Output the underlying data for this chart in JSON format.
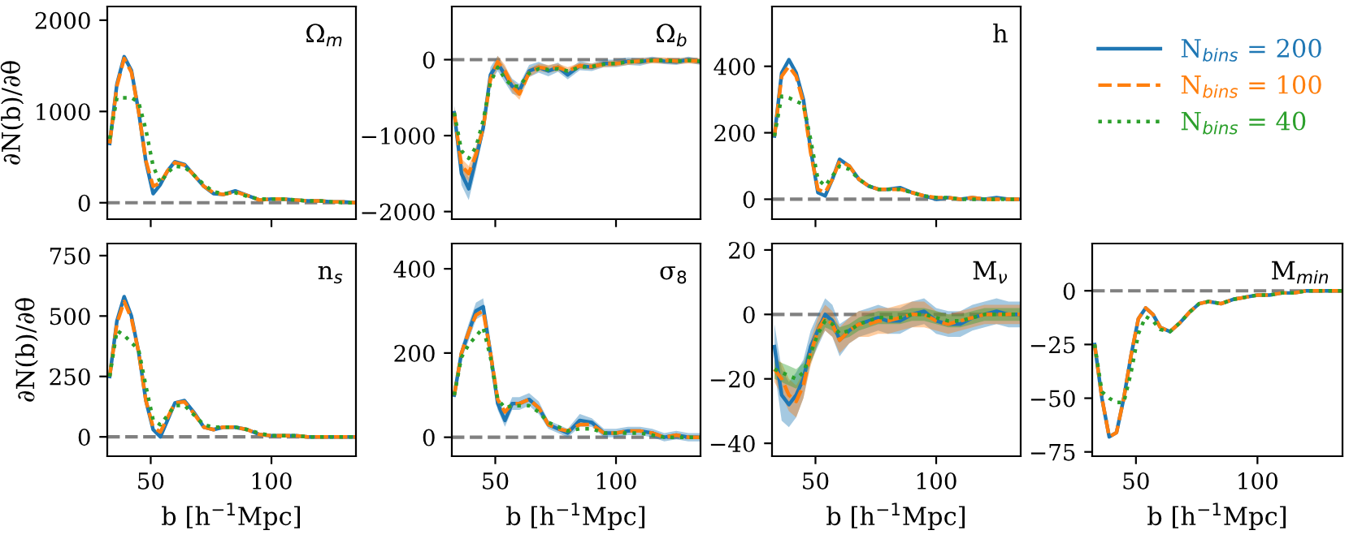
{
  "chart_data": [
    {
      "type": "line",
      "title": "Ω$_{m}$",
      "ylabel": "∂N(b)/∂θ",
      "x": [
        33,
        36,
        39,
        42,
        45,
        48,
        51,
        54,
        57,
        60,
        64,
        68,
        72,
        76,
        80,
        85,
        90,
        95,
        100,
        105,
        110,
        115,
        120,
        125,
        130,
        135
      ],
      "xlim": [
        32,
        135
      ],
      "xticks": [
        50,
        100
      ],
      "ylim": [
        -180,
        2150
      ],
      "yticks": [
        0,
        1000,
        2000
      ],
      "tick_labels": "y",
      "legend": "right",
      "ref_lines": [
        {
          "axis": "y",
          "value": 0,
          "color": "#808080",
          "line_style": "dashed"
        }
      ],
      "series": [
        {
          "name": "N$_{bins}$ = 200",
          "color": "#1f77b4",
          "line_style": "solid",
          "values": [
            650,
            1300,
            1600,
            1450,
            1000,
            450,
            100,
            200,
            350,
            450,
            420,
            300,
            180,
            100,
            90,
            130,
            80,
            30,
            40,
            40,
            30,
            20,
            20,
            10,
            10,
            0
          ]
        },
        {
          "name": "N$_{bins}$ = 100",
          "color": "#ff7f0e",
          "line_style": "dashed",
          "values": [
            650,
            1280,
            1580,
            1430,
            1000,
            460,
            180,
            220,
            350,
            440,
            410,
            300,
            180,
            110,
            90,
            120,
            80,
            30,
            40,
            40,
            30,
            20,
            20,
            10,
            10,
            0
          ]
        },
        {
          "name": "N$_{bins}$ = 40",
          "color": "#2ca02c",
          "line_style": "dotted",
          "values": [
            700,
            1150,
            1150,
            1150,
            1100,
            800,
            400,
            220,
            330,
            400,
            390,
            300,
            200,
            120,
            100,
            110,
            70,
            40,
            40,
            40,
            30,
            20,
            20,
            10,
            0,
            0
          ]
        }
      ]
    },
    {
      "type": "line",
      "title": "Ω$_{b}$",
      "x": [
        33,
        36,
        39,
        42,
        45,
        48,
        51,
        54,
        57,
        60,
        64,
        68,
        72,
        76,
        80,
        85,
        90,
        95,
        100,
        105,
        110,
        115,
        120,
        125,
        130,
        135
      ],
      "xlim": [
        32,
        135
      ],
      "xticks": [
        50,
        100
      ],
      "ylim": [
        -2100,
        700
      ],
      "yticks": [
        -2000,
        -1000,
        0
      ],
      "tick_labels": "y",
      "ref_lines": [
        {
          "axis": "y",
          "value": 0,
          "color": "#808080",
          "line_style": "dashed"
        }
      ],
      "series": [
        {
          "color": "#1f77b4",
          "line_style": "solid",
          "values": [
            -700,
            -1500,
            -1700,
            -1300,
            -900,
            -200,
            -50,
            -200,
            -350,
            -400,
            -150,
            -100,
            -150,
            -100,
            -200,
            -80,
            -100,
            -50,
            -50,
            -20,
            -30,
            0,
            -20,
            -30,
            0,
            -30
          ],
          "lower": [
            -800,
            -1650,
            -1850,
            -1450,
            -1000,
            -300,
            -150,
            -300,
            -450,
            -480,
            -230,
            -170,
            -220,
            -160,
            -260,
            -140,
            -150,
            -100,
            -100,
            -70,
            -80,
            -40,
            -60,
            -70,
            -40,
            -70
          ],
          "upper": [
            -600,
            -1350,
            -1550,
            -1150,
            -800,
            -100,
            50,
            -100,
            -250,
            -320,
            -70,
            -30,
            -80,
            -40,
            -140,
            -20,
            -50,
            0,
            0,
            30,
            20,
            40,
            20,
            10,
            40,
            10
          ]
        },
        {
          "color": "#ff7f0e",
          "line_style": "dashed",
          "values": [
            -700,
            -1400,
            -1500,
            -1250,
            -900,
            -250,
            -30,
            -150,
            -350,
            -450,
            -170,
            -100,
            -120,
            -100,
            -150,
            -80,
            -90,
            -60,
            -50,
            -30,
            -20,
            -10,
            -10,
            -20,
            -10,
            -20
          ],
          "lower": [
            -780,
            -1500,
            -1600,
            -1350,
            -980,
            -330,
            -110,
            -230,
            -430,
            -530,
            -230,
            -150,
            -170,
            -150,
            -200,
            -120,
            -130,
            -100,
            -90,
            -70,
            -60,
            -50,
            -50,
            -60,
            -50,
            -60
          ],
          "upper": [
            -620,
            -1300,
            -1400,
            -1150,
            -820,
            -170,
            50,
            -70,
            -270,
            -370,
            -110,
            -50,
            -70,
            -50,
            -100,
            -40,
            -50,
            -20,
            -10,
            10,
            20,
            30,
            30,
            20,
            30,
            20
          ]
        },
        {
          "color": "#2ca02c",
          "line_style": "dotted",
          "values": [
            -700,
            -1200,
            -1300,
            -1150,
            -800,
            -300,
            -100,
            -250,
            -350,
            -350,
            -180,
            -120,
            -130,
            -120,
            -150,
            -100,
            -90,
            -60,
            -50,
            -30,
            -20,
            -10,
            -10,
            -20,
            -10,
            -20
          ]
        }
      ]
    },
    {
      "type": "line",
      "title": "h",
      "x": [
        33,
        36,
        39,
        42,
        45,
        48,
        51,
        54,
        57,
        60,
        64,
        68,
        72,
        76,
        80,
        85,
        90,
        95,
        100,
        105,
        110,
        115,
        120,
        125,
        130,
        135
      ],
      "xlim": [
        32,
        135
      ],
      "xticks": [
        50,
        100
      ],
      "ylim": [
        -60,
        580
      ],
      "yticks": [
        0,
        200,
        400
      ],
      "tick_labels": "y",
      "ref_lines": [
        {
          "axis": "y",
          "value": 0,
          "color": "#808080",
          "line_style": "dashed"
        }
      ],
      "series": [
        {
          "color": "#1f77b4",
          "line_style": "solid",
          "values": [
            190,
            380,
            420,
            380,
            300,
            150,
            20,
            10,
            60,
            120,
            100,
            60,
            40,
            30,
            30,
            35,
            20,
            10,
            0,
            5,
            0,
            5,
            0,
            5,
            0,
            0
          ]
        },
        {
          "color": "#ff7f0e",
          "line_style": "dashed",
          "values": [
            190,
            370,
            400,
            370,
            290,
            140,
            30,
            20,
            60,
            115,
            100,
            60,
            40,
            30,
            30,
            30,
            20,
            10,
            5,
            5,
            0,
            5,
            0,
            0,
            0,
            0
          ]
        },
        {
          "color": "#2ca02c",
          "line_style": "dotted",
          "values": [
            190,
            310,
            305,
            295,
            285,
            180,
            60,
            40,
            70,
            100,
            90,
            60,
            40,
            30,
            30,
            30,
            20,
            10,
            5,
            5,
            0,
            0,
            0,
            0,
            0,
            0
          ]
        }
      ]
    },
    {
      "type": "line",
      "title": "n$_{s}$",
      "ylabel": "∂N(b)/∂θ",
      "xlabel": "b [h$^{−1}$Mpc]",
      "x": [
        33,
        36,
        39,
        42,
        45,
        48,
        51,
        54,
        57,
        60,
        64,
        68,
        72,
        76,
        80,
        85,
        90,
        95,
        100,
        105,
        110,
        115,
        120,
        125,
        130,
        135
      ],
      "xlim": [
        32,
        135
      ],
      "xticks": [
        50,
        100
      ],
      "ylim": [
        -80,
        800
      ],
      "yticks": [
        0,
        250,
        500,
        750
      ],
      "ref_lines": [
        {
          "axis": "y",
          "value": 0,
          "color": "#808080",
          "line_style": "dashed"
        }
      ],
      "series": [
        {
          "color": "#1f77b4",
          "line_style": "solid",
          "values": [
            250,
            480,
            580,
            500,
            350,
            150,
            30,
            0,
            70,
            140,
            150,
            100,
            40,
            30,
            40,
            40,
            30,
            10,
            5,
            5,
            5,
            0,
            0,
            0,
            0,
            0
          ]
        },
        {
          "color": "#ff7f0e",
          "line_style": "dashed",
          "values": [
            250,
            470,
            560,
            490,
            350,
            150,
            40,
            20,
            80,
            140,
            145,
            95,
            40,
            30,
            40,
            40,
            30,
            10,
            5,
            5,
            5,
            0,
            0,
            0,
            0,
            0
          ]
        },
        {
          "color": "#2ca02c",
          "line_style": "dotted",
          "values": [
            250,
            440,
            420,
            390,
            360,
            210,
            70,
            50,
            90,
            130,
            130,
            90,
            50,
            40,
            40,
            40,
            30,
            15,
            5,
            5,
            5,
            0,
            0,
            0,
            0,
            0
          ]
        }
      ]
    },
    {
      "type": "line",
      "title": "σ$_{8}$",
      "xlabel": "b [h$^{−1}$Mpc]",
      "x": [
        33,
        36,
        39,
        42,
        45,
        48,
        51,
        54,
        57,
        60,
        64,
        68,
        72,
        76,
        80,
        85,
        90,
        95,
        100,
        105,
        110,
        115,
        120,
        125,
        130,
        135
      ],
      "xlim": [
        32,
        135
      ],
      "xticks": [
        50,
        100
      ],
      "ylim": [
        -45,
        460
      ],
      "yticks": [
        0,
        200,
        400
      ],
      "ref_lines": [
        {
          "axis": "y",
          "value": 0,
          "color": "#808080",
          "line_style": "dashed"
        }
      ],
      "series": [
        {
          "color": "#1f77b4",
          "line_style": "solid",
          "values": [
            100,
            200,
            250,
            300,
            310,
            200,
            80,
            40,
            80,
            80,
            90,
            70,
            30,
            20,
            10,
            40,
            35,
            10,
            10,
            15,
            15,
            10,
            0,
            5,
            0,
            0
          ],
          "lower": [
            90,
            185,
            230,
            280,
            290,
            185,
            65,
            25,
            65,
            65,
            75,
            55,
            20,
            10,
            0,
            25,
            25,
            0,
            0,
            5,
            5,
            0,
            -10,
            -5,
            -10,
            -10
          ],
          "upper": [
            110,
            215,
            270,
            320,
            330,
            215,
            95,
            55,
            95,
            95,
            105,
            85,
            40,
            30,
            20,
            55,
            45,
            20,
            20,
            25,
            25,
            20,
            10,
            15,
            10,
            10
          ]
        },
        {
          "color": "#ff7f0e",
          "line_style": "dashed",
          "values": [
            100,
            200,
            250,
            290,
            300,
            200,
            90,
            60,
            80,
            80,
            90,
            70,
            30,
            20,
            15,
            30,
            30,
            10,
            10,
            15,
            15,
            10,
            0,
            5,
            0,
            0
          ]
        },
        {
          "color": "#2ca02c",
          "line_style": "dotted",
          "values": [
            100,
            190,
            220,
            240,
            260,
            190,
            90,
            70,
            75,
            75,
            75,
            60,
            35,
            25,
            15,
            20,
            20,
            10,
            10,
            10,
            10,
            5,
            0,
            0,
            0,
            0
          ]
        }
      ]
    },
    {
      "type": "line",
      "title": "M$_{ν}$",
      "xlabel": "b [h$^{−1}$Mpc]",
      "x": [
        33,
        36,
        39,
        42,
        45,
        48,
        51,
        54,
        57,
        60,
        64,
        68,
        72,
        76,
        80,
        85,
        90,
        95,
        100,
        105,
        110,
        115,
        120,
        125,
        130,
        135
      ],
      "xlim": [
        32,
        135
      ],
      "xticks": [
        50,
        100
      ],
      "ylim": [
        -44,
        22
      ],
      "yticks": [
        -40,
        -20,
        0,
        20
      ],
      "ref_lines": [
        {
          "axis": "y",
          "value": 0,
          "color": "#808080",
          "line_style": "dashed"
        }
      ],
      "series": [
        {
          "color": "#1f77b4",
          "line_style": "solid",
          "values": [
            -10,
            -25,
            -28,
            -25,
            -20,
            -10,
            -5,
            0,
            -2,
            -8,
            -5,
            -3,
            -2,
            -1,
            -2,
            -2,
            0,
            1,
            -2,
            -3,
            -3,
            -1,
            0,
            1,
            0,
            0
          ],
          "lower": [
            -17,
            -33,
            -35,
            -32,
            -26,
            -15,
            -10,
            -5,
            -7,
            -13,
            -9,
            -7,
            -6,
            -5,
            -6,
            -6,
            -4,
            -3,
            -6,
            -7,
            -7,
            -5,
            -4,
            -3,
            -4,
            -4
          ],
          "upper": [
            -3,
            -17,
            -21,
            -18,
            -14,
            -5,
            0,
            5,
            3,
            -3,
            -1,
            1,
            2,
            3,
            2,
            2,
            4,
            5,
            2,
            1,
            1,
            3,
            4,
            5,
            4,
            4
          ]
        },
        {
          "color": "#ff7f0e",
          "line_style": "dashed",
          "values": [
            -17,
            -20,
            -25,
            -27,
            -22,
            -12,
            -5,
            -1,
            -3,
            -8,
            -5,
            -3,
            -3,
            -2,
            -2,
            -1,
            0,
            0,
            -2,
            -3,
            -2,
            -1,
            0,
            0,
            0,
            0
          ],
          "lower": [
            -21,
            -25,
            -30,
            -32,
            -26,
            -16,
            -9,
            -5,
            -7,
            -12,
            -9,
            -7,
            -7,
            -6,
            -6,
            -5,
            -4,
            -4,
            -5,
            -6,
            -5,
            -4,
            -3,
            -3,
            -3,
            -3
          ],
          "upper": [
            -13,
            -15,
            -20,
            -22,
            -18,
            -8,
            -1,
            3,
            1,
            -4,
            -1,
            1,
            1,
            2,
            2,
            3,
            4,
            4,
            1,
            0,
            1,
            2,
            3,
            3,
            3,
            3
          ]
        },
        {
          "color": "#2ca02c",
          "line_style": "dotted",
          "values": [
            -17,
            -18,
            -19,
            -20,
            -18,
            -12,
            -6,
            -2,
            -3,
            -6,
            -5,
            -3,
            -2,
            -1,
            -1,
            -1,
            0,
            0,
            -1,
            -2,
            -2,
            -1,
            0,
            0,
            0,
            0
          ],
          "lower": [
            -20,
            -21,
            -22,
            -23,
            -21,
            -15,
            -9,
            -4,
            -5,
            -8,
            -7,
            -5,
            -4,
            -3,
            -3,
            -3,
            -2,
            -2,
            -3,
            -4,
            -4,
            -3,
            -2,
            -2,
            -2,
            -2
          ],
          "upper": [
            -14,
            -15,
            -16,
            -17,
            -15,
            -9,
            -3,
            0,
            -1,
            -4,
            -3,
            -1,
            0,
            1,
            1,
            1,
            2,
            2,
            1,
            0,
            0,
            1,
            2,
            2,
            2,
            2
          ]
        }
      ]
    },
    {
      "type": "line",
      "title": "M$_{min}$",
      "xlabel": "b [h$^{−1}$Mpc]",
      "x": [
        33,
        36,
        39,
        42,
        45,
        48,
        51,
        54,
        57,
        60,
        64,
        68,
        72,
        76,
        80,
        85,
        90,
        95,
        100,
        105,
        110,
        115,
        120,
        125,
        130,
        135
      ],
      "xlim": [
        32,
        135
      ],
      "xticks": [
        50,
        100
      ],
      "ylim": [
        -77,
        22
      ],
      "yticks": [
        -75,
        -50,
        -25,
        0
      ],
      "ref_lines": [
        {
          "axis": "y",
          "value": 0,
          "color": "#808080",
          "line_style": "dashed"
        }
      ],
      "series": [
        {
          "color": "#1f77b4",
          "line_style": "solid",
          "values": [
            -25,
            -50,
            -68,
            -66,
            -50,
            -30,
            -13,
            -8,
            -11,
            -17,
            -19,
            -15,
            -10,
            -6,
            -5,
            -6,
            -4,
            -3,
            -2,
            -2,
            -1,
            -1,
            0,
            0,
            0,
            0
          ]
        },
        {
          "color": "#ff7f0e",
          "line_style": "dashed",
          "values": [
            -25,
            -50,
            -68,
            -66,
            -50,
            -30,
            -13,
            -8,
            -11,
            -17,
            -19,
            -15,
            -10,
            -6,
            -5,
            -6,
            -4,
            -3,
            -2,
            -2,
            -1,
            -1,
            0,
            0,
            0,
            0
          ]
        },
        {
          "color": "#2ca02c",
          "line_style": "dotted",
          "values": [
            -25,
            -47,
            -50,
            -52,
            -52,
            -38,
            -20,
            -12,
            -14,
            -18,
            -19,
            -15,
            -10,
            -6,
            -5,
            -6,
            -4,
            -3,
            -2,
            -2,
            -1,
            -1,
            0,
            0,
            0,
            0
          ]
        }
      ]
    }
  ]
}
